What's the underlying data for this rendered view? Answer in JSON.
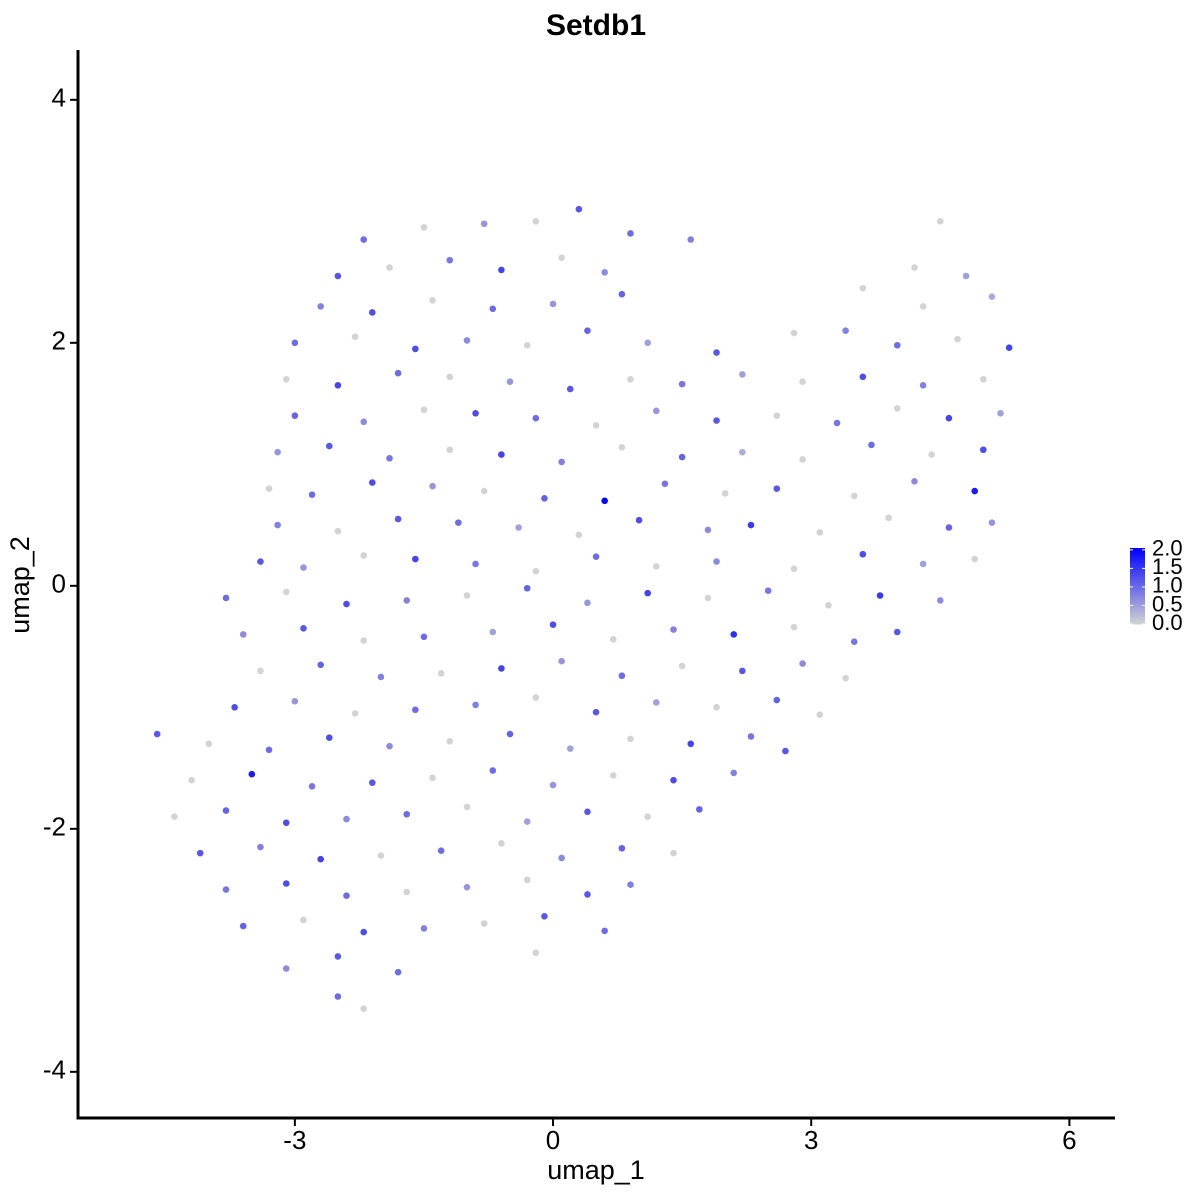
{
  "chart_data": {
    "type": "scatter",
    "title": "Setdb1",
    "x_label": "umap_1",
    "y_label": "umap_2",
    "xlim": [
      -5.52,
      6.53
    ],
    "ylim": [
      -4.38,
      4.41
    ],
    "xticks": [
      -3,
      0,
      3,
      6
    ],
    "yticks": [
      -4,
      -2,
      0,
      2,
      4
    ],
    "colorbar": {
      "low_color": "#d3d3d3",
      "high_color": "#0000ff",
      "lim": [
        0,
        2.05
      ],
      "ticks": [
        {
          "value": 2,
          "label": "2.0"
        },
        {
          "value": 1.5,
          "label": "1.5"
        },
        {
          "value": 1,
          "label": "1.0"
        },
        {
          "value": 0.5,
          "label": "0.5"
        },
        {
          "value": 0,
          "label": "0.0"
        }
      ]
    },
    "x": [
      -2.2,
      -1.5,
      -0.8,
      -0.2,
      0.3,
      0.9,
      1.6,
      4.5,
      -2.5,
      -1.9,
      -1.2,
      -0.6,
      0.1,
      0.6,
      4.2,
      4.8,
      -2.7,
      -2.1,
      -1.4,
      -0.7,
      0.0,
      0.8,
      3.6,
      4.3,
      5.1,
      -3.0,
      -2.3,
      -1.6,
      -1.0,
      -0.3,
      0.4,
      1.1,
      1.9,
      2.8,
      3.4,
      4.0,
      4.7,
      5.3,
      -3.1,
      -2.5,
      -1.8,
      -1.2,
      -0.5,
      0.2,
      0.9,
      1.5,
      2.2,
      2.9,
      3.6,
      4.3,
      5.0,
      -3.0,
      -2.2,
      -1.5,
      -0.9,
      -0.2,
      0.5,
      1.2,
      1.9,
      2.6,
      3.3,
      4.0,
      4.6,
      5.2,
      -3.2,
      -2.6,
      -1.9,
      -1.2,
      -0.6,
      0.1,
      0.8,
      1.5,
      2.2,
      2.9,
      3.7,
      4.4,
      5.0,
      -3.3,
      -2.8,
      -2.1,
      -1.4,
      -0.8,
      -0.1,
      0.6,
      1.3,
      2.0,
      2.6,
      3.5,
      4.2,
      4.9,
      -3.2,
      -2.5,
      -1.8,
      -1.1,
      -0.4,
      0.3,
      1.0,
      1.8,
      2.3,
      3.1,
      3.9,
      4.6,
      5.1,
      -3.4,
      -2.9,
      -2.2,
      -1.6,
      -0.9,
      -0.2,
      0.5,
      1.2,
      1.9,
      2.8,
      3.6,
      4.3,
      4.9,
      -3.8,
      -3.1,
      -2.4,
      -1.7,
      -1.0,
      -0.3,
      0.4,
      1.1,
      1.8,
      2.5,
      3.2,
      3.8,
      4.5,
      -3.6,
      -2.9,
      -2.2,
      -1.5,
      -0.7,
      0.0,
      0.7,
      1.4,
      2.1,
      2.8,
      3.5,
      4.0,
      -3.4,
      -2.7,
      -2.0,
      -1.3,
      -0.6,
      0.1,
      0.8,
      1.5,
      2.2,
      2.9,
      3.4,
      -3.7,
      -3.0,
      -2.3,
      -1.6,
      -0.9,
      -0.2,
      0.5,
      1.2,
      1.9,
      2.6,
      3.1,
      -4.6,
      -4.0,
      -3.3,
      -2.6,
      -1.9,
      -1.2,
      -0.5,
      0.2,
      0.9,
      1.6,
      2.3,
      2.7,
      -4.2,
      -3.5,
      -2.8,
      -2.1,
      -1.4,
      -0.7,
      0.0,
      0.7,
      1.4,
      2.1,
      -4.4,
      -3.8,
      -3.1,
      -2.4,
      -1.7,
      -1.0,
      -0.3,
      0.4,
      1.1,
      1.7,
      -4.1,
      -3.4,
      -2.7,
      -2.0,
      -1.3,
      -0.6,
      0.1,
      0.8,
      1.4,
      -3.8,
      -3.1,
      -2.4,
      -1.7,
      -1.0,
      -0.3,
      0.4,
      0.9,
      -3.6,
      -2.9,
      -2.2,
      -1.5,
      -0.8,
      -0.1,
      0.6,
      -3.1,
      -2.5,
      -1.8,
      -0.2,
      -2.5,
      -2.2
    ],
    "y": [
      2.85,
      2.95,
      2.98,
      3.0,
      3.1,
      2.9,
      2.85,
      3.0,
      2.55,
      2.62,
      2.68,
      2.6,
      2.7,
      2.58,
      2.62,
      2.55,
      2.3,
      2.25,
      2.35,
      2.28,
      2.32,
      2.4,
      2.45,
      2.3,
      2.38,
      2.0,
      2.05,
      1.95,
      2.02,
      1.98,
      2.1,
      2.0,
      1.92,
      2.08,
      2.1,
      1.98,
      2.03,
      1.96,
      1.7,
      1.65,
      1.75,
      1.72,
      1.68,
      1.62,
      1.7,
      1.66,
      1.74,
      1.68,
      1.72,
      1.65,
      1.7,
      1.4,
      1.35,
      1.45,
      1.42,
      1.38,
      1.32,
      1.44,
      1.36,
      1.4,
      1.34,
      1.46,
      1.38,
      1.42,
      1.1,
      1.15,
      1.05,
      1.12,
      1.08,
      1.02,
      1.14,
      1.06,
      1.1,
      1.04,
      1.16,
      1.08,
      1.12,
      0.8,
      0.75,
      0.85,
      0.82,
      0.78,
      0.72,
      0.7,
      0.84,
      0.76,
      0.8,
      0.74,
      0.86,
      0.78,
      0.5,
      0.45,
      0.55,
      0.52,
      0.48,
      0.42,
      0.54,
      0.46,
      0.5,
      0.44,
      0.56,
      0.48,
      0.52,
      0.2,
      0.15,
      0.25,
      0.22,
      0.18,
      0.12,
      0.24,
      0.16,
      0.2,
      0.14,
      0.26,
      0.18,
      0.22,
      -0.1,
      -0.05,
      -0.15,
      -0.12,
      -0.08,
      -0.02,
      -0.14,
      -0.06,
      -0.1,
      -0.04,
      -0.16,
      -0.08,
      -0.12,
      -0.4,
      -0.35,
      -0.45,
      -0.42,
      -0.38,
      -0.32,
      -0.44,
      -0.36,
      -0.4,
      -0.34,
      -0.46,
      -0.38,
      -0.7,
      -0.65,
      -0.75,
      -0.72,
      -0.68,
      -0.62,
      -0.74,
      -0.66,
      -0.7,
      -0.64,
      -0.76,
      -1.0,
      -0.95,
      -1.05,
      -1.02,
      -0.98,
      -0.92,
      -1.04,
      -0.96,
      -1.0,
      -0.94,
      -1.06,
      -1.22,
      -1.3,
      -1.35,
      -1.25,
      -1.32,
      -1.28,
      -1.22,
      -1.34,
      -1.26,
      -1.3,
      -1.24,
      -1.36,
      -1.6,
      -1.55,
      -1.65,
      -1.62,
      -1.58,
      -1.52,
      -1.64,
      -1.56,
      -1.6,
      -1.54,
      -1.9,
      -1.85,
      -1.95,
      -1.92,
      -1.88,
      -1.82,
      -1.94,
      -1.86,
      -1.9,
      -1.84,
      -2.2,
      -2.15,
      -2.25,
      -2.22,
      -2.18,
      -2.12,
      -2.24,
      -2.16,
      -2.2,
      -2.5,
      -2.45,
      -2.55,
      -2.52,
      -2.48,
      -2.42,
      -2.54,
      -2.46,
      -2.8,
      -2.75,
      -2.85,
      -2.82,
      -2.78,
      -2.72,
      -2.84,
      -3.15,
      -3.05,
      -3.18,
      -3.02,
      -3.38,
      -3.48
    ],
    "values": [
      1.0,
      0,
      0.6,
      0,
      1.2,
      1.0,
      0.8,
      0,
      1.2,
      0,
      0.9,
      1.4,
      0,
      0.7,
      0,
      0.5,
      0.8,
      1.3,
      0,
      1.0,
      0.6,
      1.1,
      0,
      0,
      0.4,
      1.0,
      0,
      1.3,
      0.7,
      0,
      1.1,
      0.5,
      1.2,
      0,
      0.8,
      1.0,
      0,
      1.4,
      0,
      1.4,
      1.0,
      0,
      0.6,
      1.2,
      0,
      0.9,
      0.5,
      0,
      1.3,
      0.8,
      0,
      1.1,
      0.7,
      0,
      1.3,
      1.0,
      0,
      0.6,
      1.2,
      0,
      0.9,
      0,
      1.4,
      0.5,
      0.6,
      1.2,
      0.9,
      0,
      1.4,
      0.8,
      0,
      1.1,
      0.4,
      0,
      1.0,
      0,
      1.3,
      0,
      1.0,
      1.3,
      0.6,
      0,
      1.1,
      2.0,
      0.9,
      0,
      1.2,
      0,
      0.7,
      1.8,
      0.8,
      0,
      1.2,
      1.0,
      0.5,
      0,
      1.3,
      0.7,
      1.5,
      0,
      0,
      1.1,
      0.6,
      1.2,
      0.6,
      0,
      1.4,
      0.9,
      0,
      1.0,
      0,
      0.7,
      0,
      1.3,
      0.5,
      0,
      1.0,
      0,
      1.3,
      0.8,
      0,
      1.1,
      0.6,
      1.4,
      0,
      0.9,
      0,
      1.5,
      0.7,
      0.7,
      1.2,
      0,
      1.0,
      0.5,
      1.3,
      0,
      0.8,
      1.6,
      0,
      0.9,
      1.2,
      0,
      1.1,
      0.8,
      0,
      1.4,
      0.6,
      1.0,
      0,
      1.2,
      0.7,
      0,
      1.3,
      0.6,
      0,
      1.0,
      0.8,
      0,
      1.2,
      0.5,
      0,
      1.1,
      0,
      1.2,
      0,
      1.0,
      1.3,
      0.7,
      0,
      1.1,
      0.5,
      0,
      1.4,
      0.9,
      1.2,
      0,
      1.8,
      0.9,
      1.2,
      0,
      1.0,
      0.6,
      0,
      1.3,
      0.8,
      0,
      1.1,
      1.3,
      0.7,
      1.0,
      0,
      0.5,
      1.2,
      0,
      1.1,
      1.2,
      0.8,
      1.4,
      0,
      1.0,
      0,
      0.7,
      1.1,
      0,
      0.9,
      1.3,
      1.0,
      0,
      0.6,
      0,
      1.2,
      0.8,
      1.1,
      0,
      1.3,
      0.8,
      0,
      1.2,
      1.0,
      0.7,
      1.2,
      1.0,
      0,
      1.0,
      0
    ]
  }
}
